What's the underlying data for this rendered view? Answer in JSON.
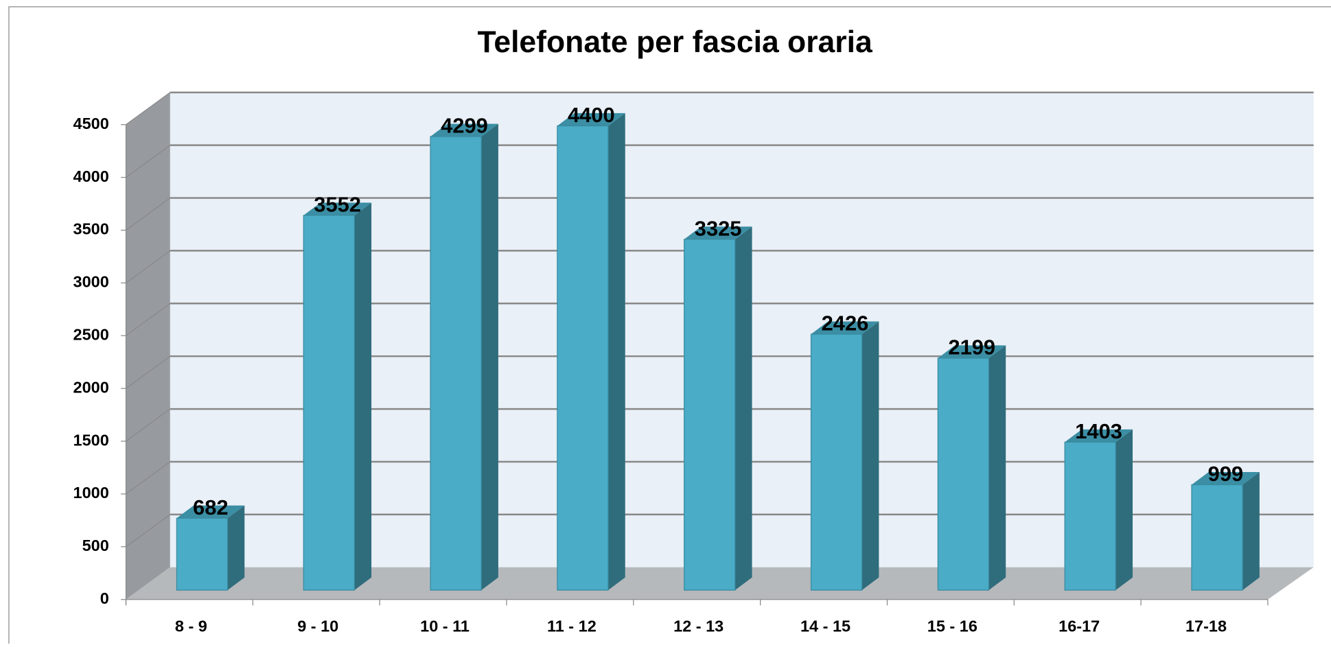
{
  "chart_data": {
    "type": "bar3d",
    "title": "Telefonate per fascia oraria",
    "categories": [
      "8 - 9",
      "9 - 10",
      "10 - 11",
      "11 - 12",
      "12 - 13",
      "14 - 15",
      "15 - 16",
      "16-17",
      "17-18"
    ],
    "values": [
      682,
      3552,
      4299,
      4400,
      3325,
      2426,
      2199,
      1403,
      999
    ],
    "color": "#4aacc6",
    "ylim": [
      0,
      4500
    ],
    "yticks": [
      0,
      500,
      1000,
      1500,
      2000,
      2500,
      3000,
      3500,
      4000,
      4500
    ],
    "grid": true
  }
}
